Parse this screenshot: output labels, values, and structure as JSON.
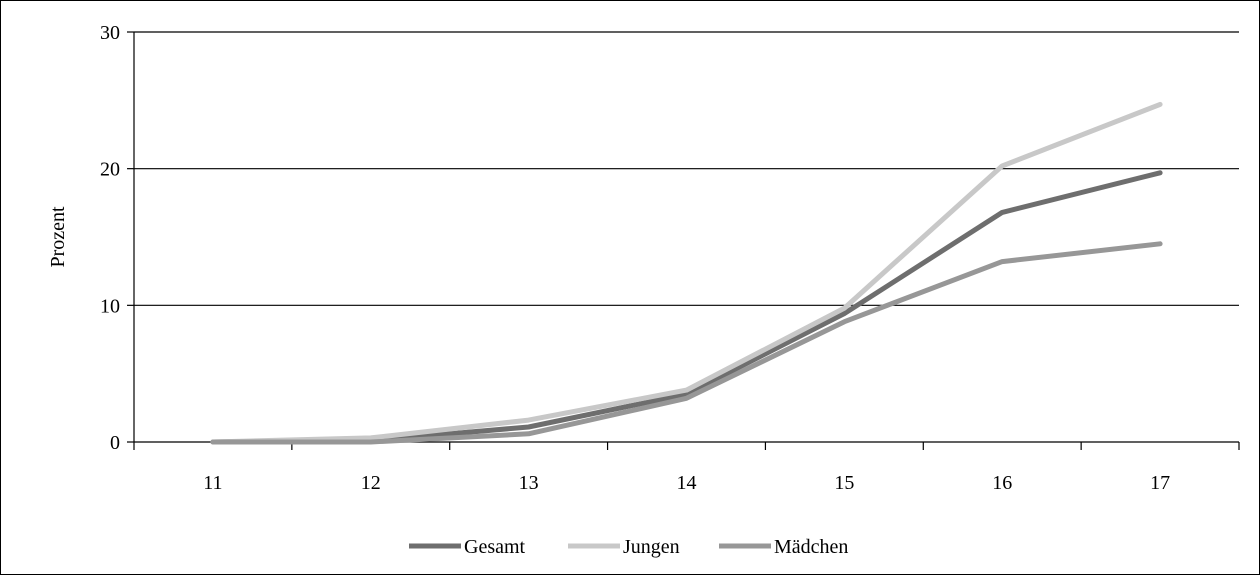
{
  "chart_data": {
    "type": "line",
    "title": "",
    "xlabel": "",
    "ylabel": "Prozent",
    "categories": [
      "11",
      "12",
      "13",
      "14",
      "15",
      "16",
      "17"
    ],
    "ylim": [
      0,
      30
    ],
    "yticks": [
      0,
      10,
      20,
      30
    ],
    "grid": true,
    "legend_position": "bottom",
    "series": [
      {
        "name": "Gesamt",
        "color": "#6e6e6e",
        "values": [
          0.0,
          0.1,
          1.1,
          3.5,
          9.4,
          16.8,
          19.7
        ]
      },
      {
        "name": "Jungen",
        "color": "#c8c8c8",
        "values": [
          0.0,
          0.3,
          1.6,
          3.8,
          9.8,
          20.2,
          24.7
        ]
      },
      {
        "name": "Mädchen",
        "color": "#979797",
        "values": [
          0.0,
          0.0,
          0.6,
          3.2,
          8.8,
          13.2,
          14.5
        ]
      }
    ]
  }
}
